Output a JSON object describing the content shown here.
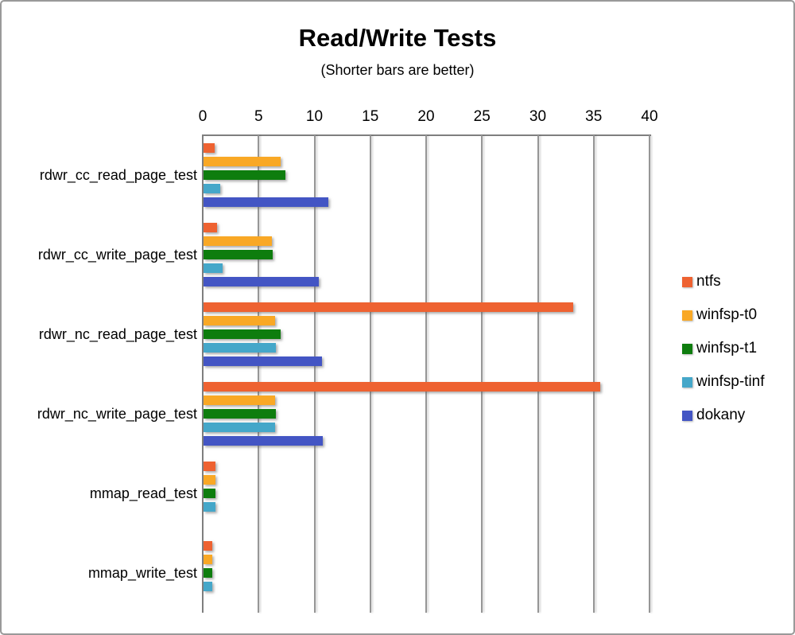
{
  "chart_data": {
    "type": "bar",
    "orientation": "horizontal",
    "title": "Read/Write Tests",
    "subtitle": "(Shorter bars are better)",
    "categories": [
      "rdwr_cc_read_page_test",
      "rdwr_cc_write_page_test",
      "rdwr_nc_read_page_test",
      "rdwr_nc_write_page_test",
      "mmap_read_test",
      "mmap_write_test"
    ],
    "series": [
      {
        "name": "ntfs",
        "color": "#EE6231",
        "values": [
          1.0,
          1.2,
          33.1,
          35.5,
          1.1,
          0.8
        ]
      },
      {
        "name": "winfsp-t0",
        "color": "#F9A825",
        "values": [
          6.9,
          6.1,
          6.4,
          6.4,
          1.1,
          0.8
        ]
      },
      {
        "name": "winfsp-t1",
        "color": "#0E7D0E",
        "values": [
          7.3,
          6.2,
          6.9,
          6.5,
          1.1,
          0.8
        ]
      },
      {
        "name": "winfsp-tinf",
        "color": "#45A7C9",
        "values": [
          1.5,
          1.7,
          6.5,
          6.4,
          1.1,
          0.8
        ]
      },
      {
        "name": "dokany",
        "color": "#4355C4",
        "values": [
          11.2,
          10.3,
          10.6,
          10.7,
          0,
          0
        ]
      }
    ],
    "x_axis": {
      "min": 0,
      "max": 40,
      "ticks": [
        0,
        5,
        10,
        15,
        20,
        25,
        30,
        35,
        40
      ],
      "position": "top"
    },
    "grid": true,
    "legend_position": "right",
    "axis_color": "#7f7f7f",
    "gridline_color": "#969696"
  }
}
